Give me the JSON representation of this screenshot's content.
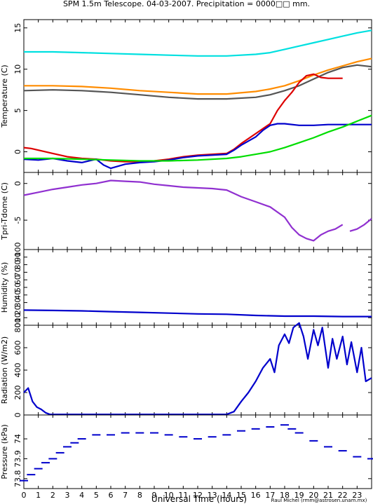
{
  "title": "SPM 1.5m Telescope. 04-03-2007. Precipitation = 0000□□ mm.",
  "xlabel": "Universal Time (hours)",
  "credit": "Raul Michel (rmm@astrosen.unam.mx)",
  "chart_data": [
    {
      "type": "line",
      "panel": "temperature",
      "ylabel": "Temperature (C)",
      "ylim": [
        -2.5,
        16
      ],
      "yticks": [
        0,
        5,
        10,
        15
      ],
      "xlim": [
        0,
        24
      ],
      "series": [
        {
          "color": "#00e0e0",
          "x": [
            0,
            2,
            4,
            6,
            8,
            10,
            12,
            14,
            16,
            17,
            18,
            19,
            20,
            21,
            22,
            23,
            24
          ],
          "y": [
            12.1,
            12.1,
            12.0,
            11.9,
            11.8,
            11.7,
            11.6,
            11.6,
            11.8,
            12.0,
            12.4,
            12.8,
            13.2,
            13.6,
            14.0,
            14.4,
            14.7
          ]
        },
        {
          "color": "#ff8c00",
          "x": [
            0,
            2,
            4,
            6,
            8,
            10,
            12,
            14,
            16,
            17,
            18,
            19,
            20,
            21,
            22,
            23,
            24
          ],
          "y": [
            8.0,
            8.0,
            7.9,
            7.7,
            7.4,
            7.2,
            7.0,
            7.0,
            7.3,
            7.6,
            8.0,
            8.6,
            9.3,
            9.9,
            10.4,
            10.9,
            11.3
          ]
        },
        {
          "color": "#555555",
          "x": [
            0,
            2,
            4,
            6,
            8,
            10,
            12,
            14,
            16,
            17,
            18,
            19,
            20,
            21,
            22,
            23,
            24
          ],
          "y": [
            7.4,
            7.5,
            7.4,
            7.2,
            6.9,
            6.6,
            6.4,
            6.4,
            6.6,
            6.9,
            7.4,
            8.0,
            8.8,
            9.6,
            10.2,
            10.5,
            10.3
          ]
        },
        {
          "color": "#dd0000",
          "x": [
            0,
            0.5,
            1,
            2,
            3,
            4,
            5,
            6,
            7,
            8,
            9,
            10,
            11,
            12,
            13,
            14,
            14.5,
            15,
            16,
            16.5,
            17,
            17.5,
            18,
            18.5,
            19,
            19.5,
            20,
            20.5,
            21,
            21.5,
            22
          ],
          "y": [
            0.5,
            0.4,
            0.2,
            -0.2,
            -0.6,
            -0.8,
            -0.9,
            -1.1,
            -1.2,
            -1.2,
            -1.1,
            -0.9,
            -0.6,
            -0.4,
            -0.3,
            -0.2,
            0.3,
            1.0,
            2.2,
            2.8,
            3.4,
            5.0,
            6.2,
            7.2,
            8.4,
            9.2,
            9.4,
            9.0,
            8.9,
            8.9,
            8.9
          ]
        },
        {
          "color": "#0000cc",
          "x": [
            0,
            1,
            2,
            3,
            4,
            5,
            5.5,
            6,
            7,
            8,
            9,
            10,
            11,
            12,
            13,
            14,
            14.5,
            15,
            16,
            16.5,
            17,
            17.5,
            18,
            19,
            20,
            21,
            22,
            23,
            24
          ],
          "y": [
            -0.9,
            -1.0,
            -0.8,
            -1.1,
            -1.3,
            -0.9,
            -1.6,
            -2.0,
            -1.5,
            -1.3,
            -1.2,
            -1.0,
            -0.7,
            -0.5,
            -0.4,
            -0.3,
            0.2,
            0.8,
            1.8,
            2.6,
            3.2,
            3.4,
            3.4,
            3.2,
            3.2,
            3.3,
            3.3,
            3.3,
            3.3
          ]
        },
        {
          "color": "#00dd00",
          "x": [
            0,
            2,
            4,
            6,
            8,
            10,
            12,
            14,
            15,
            16,
            17,
            18,
            19,
            20,
            21,
            22,
            23,
            24
          ],
          "y": [
            -0.8,
            -0.8,
            -0.9,
            -1.0,
            -1.1,
            -1.1,
            -1.0,
            -0.8,
            -0.6,
            -0.3,
            0.0,
            0.5,
            1.1,
            1.7,
            2.4,
            3.0,
            3.7,
            4.4
          ]
        }
      ]
    },
    {
      "type": "line",
      "panel": "tpri-tdome",
      "ylabel": "Tpri-Tdome (C)",
      "ylim": [
        -9,
        1.5
      ],
      "yticks": [
        0,
        -5
      ],
      "xlim": [
        0,
        24
      ],
      "series": [
        {
          "color": "#9030d0",
          "x": [
            0,
            1,
            2,
            3,
            4,
            5,
            6,
            7,
            8,
            9,
            10,
            11,
            12,
            13,
            14,
            15,
            16,
            17,
            18,
            18.5,
            19,
            19.5,
            20,
            20.5,
            21,
            21.5,
            22
          ],
          "y": [
            -1.6,
            -1.2,
            -0.8,
            -0.5,
            -0.2,
            0.0,
            0.4,
            0.3,
            0.2,
            -0.1,
            -0.3,
            -0.5,
            -0.6,
            -0.7,
            -0.9,
            -1.8,
            -2.5,
            -3.2,
            -4.6,
            -6.0,
            -7.0,
            -7.5,
            -7.8,
            -7.0,
            -6.5,
            -6.2,
            -5.6
          ]
        },
        {
          "color": "#9030d0",
          "x": [
            22.5,
            23,
            23.5,
            24
          ],
          "y": [
            -6.5,
            -6.2,
            -5.6,
            -4.8
          ]
        }
      ]
    },
    {
      "type": "line",
      "panel": "humidity",
      "ylabel": "Humidity (%)",
      "ylim": [
        0,
        100
      ],
      "yticks": [
        0,
        10,
        20,
        30,
        40,
        50,
        60,
        70,
        80,
        90,
        100
      ],
      "xlim": [
        0,
        24
      ],
      "series": [
        {
          "color": "#0000cc",
          "x": [
            0,
            2,
            4,
            6,
            8,
            10,
            12,
            14,
            16,
            18,
            20,
            22,
            24
          ],
          "y": [
            20,
            19.5,
            19,
            18,
            17,
            16,
            15,
            14.5,
            13,
            12,
            12,
            11.5,
            11.5
          ]
        }
      ]
    },
    {
      "type": "line",
      "panel": "radiation",
      "ylabel": "Radiation (W/m2)",
      "ylim": [
        0,
        800
      ],
      "yticks": [
        0,
        200,
        400,
        600,
        800
      ],
      "xlim": [
        0,
        24
      ],
      "series": [
        {
          "color": "#0000cc",
          "x": [
            0,
            0.3,
            0.6,
            0.9,
            1.2,
            1.5,
            1.8,
            5,
            10,
            13,
            14,
            14.5,
            15,
            15.5,
            16,
            16.5,
            17,
            17.3,
            17.6,
            18,
            18.3,
            18.6,
            19,
            19.3,
            19.6,
            20,
            20.3,
            20.6,
            21,
            21.3,
            21.6,
            22,
            22.3,
            22.6,
            23,
            23.3,
            23.6,
            24
          ],
          "y": [
            200,
            240,
            120,
            70,
            50,
            20,
            5,
            5,
            5,
            5,
            5,
            30,
            120,
            200,
            300,
            420,
            500,
            380,
            620,
            720,
            640,
            780,
            820,
            700,
            500,
            760,
            620,
            780,
            420,
            680,
            500,
            700,
            450,
            650,
            380,
            600,
            300,
            330
          ]
        }
      ]
    },
    {
      "type": "scatter",
      "panel": "pressure",
      "ylabel": "Pressure (kPa)",
      "ylim": [
        73.75,
        74.12
      ],
      "yticks": [
        73.8,
        73.9,
        74.0
      ],
      "yticklabels": [
        "73.8",
        "73.9",
        "74"
      ],
      "xlim": [
        0,
        24
      ],
      "series": [
        {
          "color": "#0000cc",
          "x": [
            0,
            0.5,
            1,
            1.5,
            2,
            2.5,
            3,
            3.5,
            4,
            5,
            6,
            7,
            8,
            9,
            10,
            11,
            12,
            13,
            14,
            15,
            16,
            17,
            18,
            18.5,
            19,
            20,
            21,
            22,
            23,
            24
          ],
          "y": [
            73.79,
            73.82,
            73.85,
            73.88,
            73.9,
            73.93,
            73.96,
            73.98,
            74.0,
            74.02,
            74.02,
            74.03,
            74.03,
            74.03,
            74.02,
            74.01,
            74.0,
            74.01,
            74.02,
            74.04,
            74.05,
            74.06,
            74.07,
            74.05,
            74.03,
            73.99,
            73.96,
            73.94,
            73.91,
            73.9
          ]
        }
      ]
    }
  ]
}
